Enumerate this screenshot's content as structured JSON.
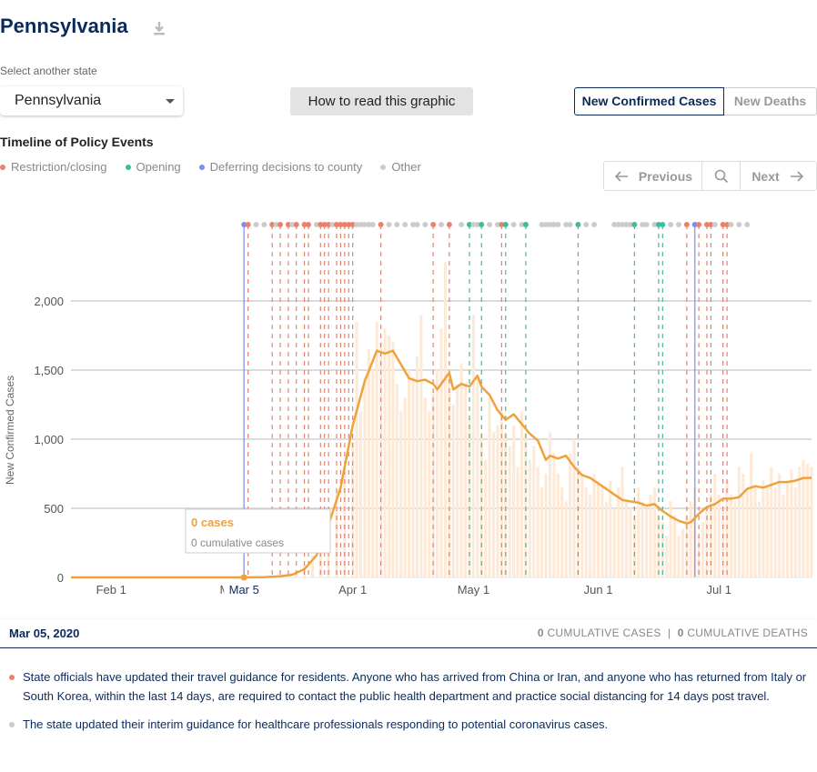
{
  "header": {
    "title": "Pennsylvania"
  },
  "state_select": {
    "label": "Select another state",
    "value": "Pennsylvania"
  },
  "how_to_button": "How to read this graphic",
  "metric_toggle": {
    "active": "New Confirmed Cases",
    "inactive": "New Deaths"
  },
  "timeline": {
    "title": "Timeline of Policy Events",
    "legend": [
      {
        "label": "Restriction/closing",
        "color": "#e8826b"
      },
      {
        "label": "Opening",
        "color": "#3dbd9f"
      },
      {
        "label": "Deferring decisions to county",
        "color": "#7b8cef"
      },
      {
        "label": "Other",
        "color": "#cccccc"
      }
    ],
    "nav": {
      "prev": "Previous",
      "next": "Next"
    }
  },
  "colors": {
    "line": "#f0a23a",
    "bars": "#fde9d6",
    "navy": "#0b2a5b",
    "restriction": "#e8826b",
    "opening": "#3dbd9f",
    "county": "#7b8cef",
    "other": "#cccccc"
  },
  "chart_data": {
    "type": "line",
    "ylabel": "New Confirmed Cases",
    "ylim": [
      0,
      2000
    ],
    "y_ticks": [
      "0",
      "500",
      "1,000",
      "1,500",
      "2,000"
    ],
    "x_ticks": [
      "Feb 1",
      "Ma",
      "Apr 1",
      "May 1",
      "Jun 1",
      "Jul 1"
    ],
    "x_range": [
      "2020-01-22",
      "2020-07-24"
    ],
    "selected_date": "Mar 5",
    "series": [
      {
        "values": [
          [
            "2020-01-22",
            0
          ],
          [
            "2020-03-05",
            0
          ],
          [
            "2020-03-10",
            2
          ],
          [
            "2020-03-14",
            8
          ],
          [
            "2020-03-17",
            20
          ],
          [
            "2020-03-20",
            60
          ],
          [
            "2020-03-23",
            160
          ],
          [
            "2020-03-26",
            380
          ],
          [
            "2020-03-29",
            650
          ],
          [
            "2020-04-01",
            1100
          ],
          [
            "2020-04-04",
            1420
          ],
          [
            "2020-04-07",
            1640
          ],
          [
            "2020-04-09",
            1620
          ],
          [
            "2020-04-11",
            1640
          ],
          [
            "2020-04-13",
            1540
          ],
          [
            "2020-04-15",
            1440
          ],
          [
            "2020-04-17",
            1420
          ],
          [
            "2020-04-19",
            1430
          ],
          [
            "2020-04-21",
            1400
          ],
          [
            "2020-04-22",
            1360
          ],
          [
            "2020-04-24",
            1440
          ],
          [
            "2020-04-25",
            1480
          ],
          [
            "2020-04-26",
            1360
          ],
          [
            "2020-04-28",
            1400
          ],
          [
            "2020-04-30",
            1380
          ],
          [
            "2020-05-02",
            1460
          ],
          [
            "2020-05-03",
            1380
          ],
          [
            "2020-05-05",
            1320
          ],
          [
            "2020-05-07",
            1210
          ],
          [
            "2020-05-09",
            1140
          ],
          [
            "2020-05-11",
            1180
          ],
          [
            "2020-05-13",
            1110
          ],
          [
            "2020-05-15",
            1040
          ],
          [
            "2020-05-17",
            990
          ],
          [
            "2020-05-19",
            850
          ],
          [
            "2020-05-20",
            880
          ],
          [
            "2020-05-22",
            860
          ],
          [
            "2020-05-24",
            880
          ],
          [
            "2020-05-26",
            800
          ],
          [
            "2020-05-28",
            740
          ],
          [
            "2020-05-30",
            720
          ],
          [
            "2020-06-01",
            680
          ],
          [
            "2020-06-03",
            640
          ],
          [
            "2020-06-05",
            600
          ],
          [
            "2020-06-07",
            560
          ],
          [
            "2020-06-09",
            550
          ],
          [
            "2020-06-11",
            540
          ],
          [
            "2020-06-13",
            520
          ],
          [
            "2020-06-15",
            530
          ],
          [
            "2020-06-17",
            480
          ],
          [
            "2020-06-19",
            440
          ],
          [
            "2020-06-21",
            410
          ],
          [
            "2020-06-23",
            390
          ],
          [
            "2020-06-24",
            400
          ],
          [
            "2020-06-26",
            460
          ],
          [
            "2020-06-28",
            510
          ],
          [
            "2020-06-30",
            530
          ],
          [
            "2020-07-02",
            570
          ],
          [
            "2020-07-04",
            570
          ],
          [
            "2020-07-06",
            580
          ],
          [
            "2020-07-08",
            640
          ],
          [
            "2020-07-10",
            660
          ],
          [
            "2020-07-12",
            650
          ],
          [
            "2020-07-14",
            670
          ],
          [
            "2020-07-16",
            690
          ],
          [
            "2020-07-18",
            690
          ],
          [
            "2020-07-20",
            700
          ],
          [
            "2020-07-22",
            720
          ],
          [
            "2020-07-24",
            720
          ]
        ]
      }
    ],
    "daily_bars": [
      [
        "2020-03-14",
        10
      ],
      [
        "2020-03-16",
        30
      ],
      [
        "2020-03-18",
        50
      ],
      [
        "2020-03-20",
        90
      ],
      [
        "2020-03-22",
        160
      ],
      [
        "2020-03-24",
        280
      ],
      [
        "2020-03-26",
        450
      ],
      [
        "2020-03-28",
        620
      ],
      [
        "2020-03-30",
        800
      ],
      [
        "2020-04-01",
        980
      ],
      [
        "2020-04-02",
        1850
      ],
      [
        "2020-04-03",
        1200
      ],
      [
        "2020-04-04",
        1450
      ],
      [
        "2020-04-05",
        1650
      ],
      [
        "2020-04-06",
        1500
      ],
      [
        "2020-04-07",
        1850
      ],
      [
        "2020-04-08",
        1700
      ],
      [
        "2020-04-09",
        1800
      ],
      [
        "2020-04-10",
        1750
      ],
      [
        "2020-04-11",
        1700
      ],
      [
        "2020-04-12",
        1400
      ],
      [
        "2020-04-13",
        1200
      ],
      [
        "2020-04-14",
        1300
      ],
      [
        "2020-04-15",
        1500
      ],
      [
        "2020-04-16",
        1450
      ],
      [
        "2020-04-17",
        1600
      ],
      [
        "2020-04-18",
        1900
      ],
      [
        "2020-04-19",
        1300
      ],
      [
        "2020-04-20",
        1200
      ],
      [
        "2020-04-21",
        1350
      ],
      [
        "2020-04-22",
        1500
      ],
      [
        "2020-04-23",
        1800
      ],
      [
        "2020-04-24",
        2280
      ],
      [
        "2020-04-25",
        1500
      ],
      [
        "2020-04-26",
        1250
      ],
      [
        "2020-04-27",
        1400
      ],
      [
        "2020-04-28",
        1550
      ],
      [
        "2020-04-29",
        1400
      ],
      [
        "2020-04-30",
        1150
      ],
      [
        "2020-05-01",
        1900
      ],
      [
        "2020-05-02",
        1450
      ],
      [
        "2020-05-03",
        1050
      ],
      [
        "2020-05-04",
        850
      ],
      [
        "2020-05-05",
        1300
      ],
      [
        "2020-05-06",
        1050
      ],
      [
        "2020-05-07",
        1100
      ],
      [
        "2020-05-08",
        1200
      ],
      [
        "2020-05-09",
        1050
      ],
      [
        "2020-05-10",
        950
      ],
      [
        "2020-05-11",
        1100
      ],
      [
        "2020-05-12",
        800
      ],
      [
        "2020-05-13",
        1200
      ],
      [
        "2020-05-14",
        1050
      ],
      [
        "2020-05-15",
        850
      ],
      [
        "2020-05-16",
        950
      ],
      [
        "2020-05-17",
        800
      ],
      [
        "2020-05-18",
        650
      ],
      [
        "2020-05-19",
        750
      ],
      [
        "2020-05-20",
        1050
      ],
      [
        "2020-05-21",
        900
      ],
      [
        "2020-05-22",
        750
      ],
      [
        "2020-05-23",
        650
      ],
      [
        "2020-05-24",
        550
      ],
      [
        "2020-05-25",
        900
      ],
      [
        "2020-05-26",
        1000
      ],
      [
        "2020-05-27",
        800
      ],
      [
        "2020-05-28",
        750
      ],
      [
        "2020-05-29",
        650
      ],
      [
        "2020-05-30",
        600
      ],
      [
        "2020-05-31",
        750
      ],
      [
        "2020-06-01",
        700
      ],
      [
        "2020-06-02",
        650
      ],
      [
        "2020-06-03",
        550
      ],
      [
        "2020-06-04",
        700
      ],
      [
        "2020-06-05",
        500
      ],
      [
        "2020-06-06",
        650
      ],
      [
        "2020-06-07",
        800
      ],
      [
        "2020-06-08",
        550
      ],
      [
        "2020-06-09",
        500
      ],
      [
        "2020-06-10",
        450
      ],
      [
        "2020-06-11",
        650
      ],
      [
        "2020-06-12",
        550
      ],
      [
        "2020-06-13",
        500
      ],
      [
        "2020-06-14",
        600
      ],
      [
        "2020-06-15",
        650
      ],
      [
        "2020-06-16",
        450
      ],
      [
        "2020-06-17",
        400
      ],
      [
        "2020-06-18",
        300
      ],
      [
        "2020-06-19",
        550
      ],
      [
        "2020-06-20",
        450
      ],
      [
        "2020-06-21",
        300
      ],
      [
        "2020-06-22",
        350
      ],
      [
        "2020-06-23",
        450
      ],
      [
        "2020-06-24",
        550
      ],
      [
        "2020-06-25",
        650
      ],
      [
        "2020-06-26",
        300
      ],
      [
        "2020-06-27",
        400
      ],
      [
        "2020-06-28",
        500
      ],
      [
        "2020-06-29",
        600
      ],
      [
        "2020-06-30",
        750
      ],
      [
        "2020-07-01",
        600
      ],
      [
        "2020-07-02",
        500
      ],
      [
        "2020-07-03",
        700
      ],
      [
        "2020-07-04",
        600
      ],
      [
        "2020-07-05",
        550
      ],
      [
        "2020-07-06",
        800
      ],
      [
        "2020-07-07",
        750
      ],
      [
        "2020-07-08",
        650
      ],
      [
        "2020-07-09",
        900
      ],
      [
        "2020-07-10",
        650
      ],
      [
        "2020-07-11",
        550
      ],
      [
        "2020-07-12",
        700
      ],
      [
        "2020-07-13",
        650
      ],
      [
        "2020-07-14",
        800
      ],
      [
        "2020-07-15",
        650
      ],
      [
        "2020-07-16",
        750
      ],
      [
        "2020-07-17",
        600
      ],
      [
        "2020-07-18",
        700
      ],
      [
        "2020-07-19",
        780
      ],
      [
        "2020-07-20",
        650
      ],
      [
        "2020-07-21",
        800
      ],
      [
        "2020-07-22",
        850
      ],
      [
        "2020-07-23",
        820
      ],
      [
        "2020-07-24",
        800
      ]
    ],
    "policy_events": [
      {
        "date": "2020-03-05",
        "type": "county"
      },
      {
        "date": "2020-03-06",
        "type": "restriction"
      },
      {
        "date": "2020-03-08",
        "type": "other"
      },
      {
        "date": "2020-03-10",
        "type": "other"
      },
      {
        "date": "2020-03-12",
        "type": "restriction"
      },
      {
        "date": "2020-03-13",
        "type": "other"
      },
      {
        "date": "2020-03-14",
        "type": "restriction"
      },
      {
        "date": "2020-03-16",
        "type": "restriction"
      },
      {
        "date": "2020-03-17",
        "type": "other"
      },
      {
        "date": "2020-03-18",
        "type": "restriction"
      },
      {
        "date": "2020-03-20",
        "type": "restriction"
      },
      {
        "date": "2020-03-21",
        "type": "restriction"
      },
      {
        "date": "2020-03-23",
        "type": "other"
      },
      {
        "date": "2020-03-24",
        "type": "restriction"
      },
      {
        "date": "2020-03-25",
        "type": "restriction"
      },
      {
        "date": "2020-03-26",
        "type": "restriction"
      },
      {
        "date": "2020-03-27",
        "type": "other"
      },
      {
        "date": "2020-03-28",
        "type": "restriction"
      },
      {
        "date": "2020-03-29",
        "type": "restriction"
      },
      {
        "date": "2020-03-30",
        "type": "restriction"
      },
      {
        "date": "2020-03-31",
        "type": "restriction"
      },
      {
        "date": "2020-04-01",
        "type": "restriction"
      },
      {
        "date": "2020-04-02",
        "type": "other"
      },
      {
        "date": "2020-04-03",
        "type": "other"
      },
      {
        "date": "2020-04-04",
        "type": "other"
      },
      {
        "date": "2020-04-05",
        "type": "other"
      },
      {
        "date": "2020-04-06",
        "type": "other"
      },
      {
        "date": "2020-04-08",
        "type": "restriction"
      },
      {
        "date": "2020-04-10",
        "type": "other"
      },
      {
        "date": "2020-04-12",
        "type": "other"
      },
      {
        "date": "2020-04-14",
        "type": "other"
      },
      {
        "date": "2020-04-16",
        "type": "other"
      },
      {
        "date": "2020-04-17",
        "type": "other"
      },
      {
        "date": "2020-04-19",
        "type": "other"
      },
      {
        "date": "2020-04-21",
        "type": "restriction"
      },
      {
        "date": "2020-04-23",
        "type": "other"
      },
      {
        "date": "2020-04-25",
        "type": "restriction"
      },
      {
        "date": "2020-04-28",
        "type": "other"
      },
      {
        "date": "2020-04-30",
        "type": "opening"
      },
      {
        "date": "2020-05-01",
        "type": "other"
      },
      {
        "date": "2020-05-02",
        "type": "other"
      },
      {
        "date": "2020-05-03",
        "type": "opening"
      },
      {
        "date": "2020-05-05",
        "type": "other"
      },
      {
        "date": "2020-05-07",
        "type": "other"
      },
      {
        "date": "2020-05-08",
        "type": "restriction"
      },
      {
        "date": "2020-05-09",
        "type": "opening"
      },
      {
        "date": "2020-05-11",
        "type": "other"
      },
      {
        "date": "2020-05-13",
        "type": "other"
      },
      {
        "date": "2020-05-14",
        "type": "opening"
      },
      {
        "date": "2020-05-18",
        "type": "other"
      },
      {
        "date": "2020-05-19",
        "type": "other"
      },
      {
        "date": "2020-05-20",
        "type": "other"
      },
      {
        "date": "2020-05-21",
        "type": "other"
      },
      {
        "date": "2020-05-22",
        "type": "other"
      },
      {
        "date": "2020-05-24",
        "type": "other"
      },
      {
        "date": "2020-05-25",
        "type": "other"
      },
      {
        "date": "2020-05-27",
        "type": "opening"
      },
      {
        "date": "2020-05-29",
        "type": "other"
      },
      {
        "date": "2020-05-31",
        "type": "other"
      },
      {
        "date": "2020-06-05",
        "type": "other"
      },
      {
        "date": "2020-06-06",
        "type": "other"
      },
      {
        "date": "2020-06-07",
        "type": "other"
      },
      {
        "date": "2020-06-08",
        "type": "other"
      },
      {
        "date": "2020-06-09",
        "type": "other"
      },
      {
        "date": "2020-06-10",
        "type": "opening"
      },
      {
        "date": "2020-06-12",
        "type": "other"
      },
      {
        "date": "2020-06-13",
        "type": "other"
      },
      {
        "date": "2020-06-15",
        "type": "other"
      },
      {
        "date": "2020-06-16",
        "type": "opening"
      },
      {
        "date": "2020-06-17",
        "type": "opening"
      },
      {
        "date": "2020-06-19",
        "type": "other"
      },
      {
        "date": "2020-06-21",
        "type": "other"
      },
      {
        "date": "2020-06-23",
        "type": "restriction"
      },
      {
        "date": "2020-06-25",
        "type": "county"
      },
      {
        "date": "2020-06-26",
        "type": "restriction"
      },
      {
        "date": "2020-06-28",
        "type": "restriction"
      },
      {
        "date": "2020-06-29",
        "type": "restriction"
      },
      {
        "date": "2020-06-30",
        "type": "other"
      },
      {
        "date": "2020-07-02",
        "type": "restriction"
      },
      {
        "date": "2020-07-03",
        "type": "restriction"
      },
      {
        "date": "2020-07-04",
        "type": "other"
      },
      {
        "date": "2020-07-06",
        "type": "other"
      },
      {
        "date": "2020-07-08",
        "type": "other"
      }
    ],
    "tooltip": {
      "cases": "0 cases",
      "cumulative": "0 cumulative cases"
    }
  },
  "footer": {
    "date": "Mar 05, 2020",
    "cum_cases_value": "0",
    "cum_cases_label": "CUMULATIVE CASES",
    "separator": "|",
    "cum_deaths_value": "0",
    "cum_deaths_label": "CUMULATIVE DEATHS"
  },
  "events": [
    {
      "type": "restriction",
      "text": "State officials have updated their travel guidance for residents. Anyone who has arrived from China or Iran, and anyone who has returned from Italy or South Korea, within the last 14 days, are required to contact the public health department and practice social distancing for 14 days post travel."
    },
    {
      "type": "other",
      "text": "The state updated their interim guidance for healthcare professionals responding to potential coronavirus cases."
    }
  ]
}
